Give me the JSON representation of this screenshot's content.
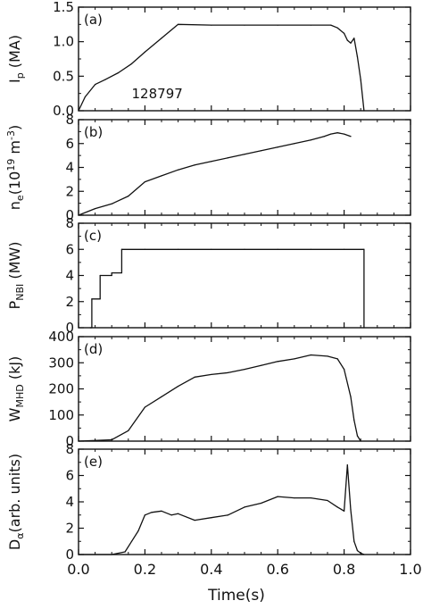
{
  "chart_data": [
    {
      "panel": "(a)",
      "type": "line",
      "ylabel_main": "I",
      "ylabel_sub": "p",
      "ylabel_unit": " (MA)",
      "ylim": [
        0.0,
        1.5
      ],
      "yticks": [
        "0.0",
        "0.5",
        "1.0",
        "1.5"
      ],
      "annotation": "128797",
      "x": [
        0.0,
        0.02,
        0.05,
        0.08,
        0.12,
        0.16,
        0.2,
        0.25,
        0.3,
        0.4,
        0.5,
        0.6,
        0.7,
        0.76,
        0.78,
        0.8,
        0.81,
        0.82,
        0.83,
        0.84,
        0.85,
        0.86
      ],
      "y": [
        0.0,
        0.2,
        0.38,
        0.45,
        0.55,
        0.68,
        0.85,
        1.05,
        1.25,
        1.24,
        1.24,
        1.24,
        1.24,
        1.24,
        1.2,
        1.12,
        1.02,
        0.98,
        1.05,
        0.78,
        0.45,
        0.0
      ]
    },
    {
      "panel": "(b)",
      "type": "line",
      "ylabel_main": "n",
      "ylabel_sub": "e",
      "ylabel_unit": "(10",
      "ylabel_sup": "19",
      "ylabel_unit2": " m",
      "ylabel_sup2": "-3",
      "ylabel_close": ")",
      "ylim": [
        0,
        8
      ],
      "yticks": [
        "0",
        "2",
        "4",
        "6",
        "8"
      ],
      "x": [
        0.0,
        0.05,
        0.1,
        0.15,
        0.2,
        0.25,
        0.3,
        0.35,
        0.4,
        0.45,
        0.5,
        0.55,
        0.6,
        0.65,
        0.7,
        0.74,
        0.76,
        0.78,
        0.8,
        0.82
      ],
      "y": [
        0.0,
        0.55,
        0.95,
        1.6,
        2.8,
        3.3,
        3.8,
        4.2,
        4.5,
        4.8,
        5.1,
        5.4,
        5.7,
        6.0,
        6.3,
        6.6,
        6.8,
        6.9,
        6.8,
        6.6
      ]
    },
    {
      "panel": "(c)",
      "type": "line",
      "ylabel_main": "P",
      "ylabel_sub": "NBI",
      "ylabel_unit": " (MW)",
      "ylim": [
        0,
        8
      ],
      "yticks": [
        "0",
        "2",
        "4",
        "6",
        "8"
      ],
      "x": [
        0.035,
        0.04,
        0.04,
        0.065,
        0.065,
        0.1,
        0.1,
        0.13,
        0.13,
        0.2,
        0.3,
        0.4,
        0.5,
        0.6,
        0.7,
        0.8,
        0.86,
        0.86
      ],
      "y": [
        0.0,
        0.0,
        2.2,
        2.2,
        4.0,
        4.0,
        4.2,
        4.2,
        6.0,
        6.0,
        6.0,
        6.0,
        6.0,
        6.0,
        6.0,
        6.0,
        6.0,
        0.0
      ]
    },
    {
      "panel": "(d)",
      "type": "line",
      "ylabel_main": "W",
      "ylabel_sub": "MHD",
      "ylabel_unit": " (kJ)",
      "ylim": [
        0,
        400
      ],
      "yticks": [
        "0",
        "100",
        "200",
        "300",
        "400"
      ],
      "x": [
        0.0,
        0.1,
        0.15,
        0.2,
        0.25,
        0.3,
        0.35,
        0.4,
        0.45,
        0.5,
        0.55,
        0.6,
        0.65,
        0.7,
        0.75,
        0.78,
        0.8,
        0.82,
        0.83,
        0.84,
        0.85
      ],
      "y": [
        0,
        5,
        40,
        130,
        170,
        210,
        245,
        255,
        262,
        275,
        290,
        305,
        315,
        330,
        325,
        315,
        275,
        170,
        80,
        20,
        0
      ]
    },
    {
      "panel": "(e)",
      "type": "line",
      "ylabel_main": "D",
      "ylabel_sub": "α",
      "ylabel_unit": "(arb. units)",
      "ylim": [
        0,
        8
      ],
      "yticks": [
        "0",
        "2",
        "4",
        "6",
        "8"
      ],
      "x": [
        0.0,
        0.1,
        0.14,
        0.16,
        0.18,
        0.2,
        0.22,
        0.25,
        0.28,
        0.3,
        0.35,
        0.4,
        0.45,
        0.5,
        0.55,
        0.6,
        0.65,
        0.7,
        0.75,
        0.78,
        0.8,
        0.81,
        0.82,
        0.83,
        0.84,
        0.85,
        0.86
      ],
      "y": [
        0.0,
        0.0,
        0.2,
        1.0,
        1.8,
        3.0,
        3.2,
        3.3,
        3.0,
        3.1,
        2.6,
        2.8,
        3.0,
        3.6,
        3.9,
        4.4,
        4.3,
        4.3,
        4.1,
        3.6,
        3.3,
        6.8,
        3.4,
        1.0,
        0.3,
        0.1,
        0.0
      ]
    }
  ],
  "xaxis": {
    "xlim": [
      0.0,
      1.0
    ],
    "xticks": [
      "0.0",
      "0.2",
      "0.4",
      "0.6",
      "0.8",
      "1.0"
    ],
    "xlabel": "Time(s)"
  },
  "colors": {
    "line": "#111111",
    "axis": "#111111",
    "background": "#ffffff"
  }
}
